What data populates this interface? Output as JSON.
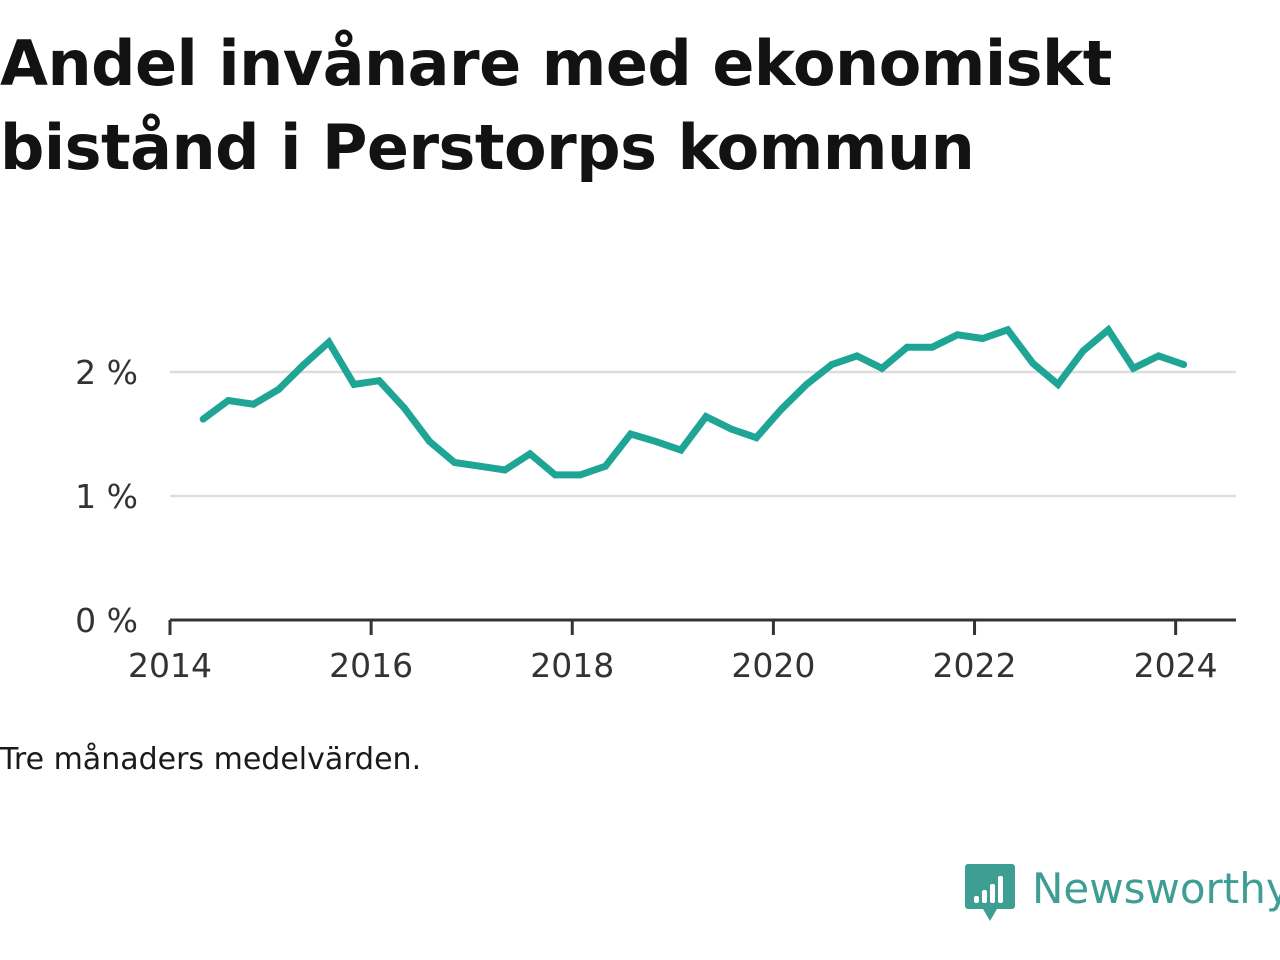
{
  "title": "Andel invånare med ekonomiskt bistånd i Perstorps kommun",
  "note": "Tre månaders medelvärden.",
  "brand": {
    "name": "Newsworthy",
    "icon": "bar-chart-speech-bubble-icon",
    "color": "#3f9e94"
  },
  "colors": {
    "line": "#1ea596",
    "grid": "#dddddd",
    "axis": "#333333"
  },
  "chart_data": {
    "type": "line",
    "title": "Andel invånare med ekonomiskt bistånd i Perstorps kommun",
    "xlabel": "",
    "ylabel": "",
    "xlim": [
      2014,
      2024.6
    ],
    "ylim": [
      0,
      2.5
    ],
    "grid": true,
    "x_ticks": [
      {
        "value": 2014,
        "label": "2014"
      },
      {
        "value": 2016,
        "label": "2016"
      },
      {
        "value": 2018,
        "label": "2018"
      },
      {
        "value": 2020,
        "label": "2020"
      },
      {
        "value": 2022,
        "label": "2022"
      },
      {
        "value": 2024,
        "label": "2024"
      }
    ],
    "y_ticks": [
      {
        "value": 0,
        "label": "0 %"
      },
      {
        "value": 1,
        "label": "1 %"
      },
      {
        "value": 2,
        "label": "2 %"
      }
    ],
    "series": [
      {
        "points": [
          {
            "x": 2014.33,
            "y": 1.62
          },
          {
            "x": 2014.58,
            "y": 1.77
          },
          {
            "x": 2014.83,
            "y": 1.74
          },
          {
            "x": 2015.08,
            "y": 1.86
          },
          {
            "x": 2015.33,
            "y": 2.06
          },
          {
            "x": 2015.58,
            "y": 2.24
          },
          {
            "x": 2015.83,
            "y": 1.9
          },
          {
            "x": 2016.08,
            "y": 1.93
          },
          {
            "x": 2016.33,
            "y": 1.71
          },
          {
            "x": 2016.58,
            "y": 1.44
          },
          {
            "x": 2016.83,
            "y": 1.27
          },
          {
            "x": 2017.08,
            "y": 1.24
          },
          {
            "x": 2017.33,
            "y": 1.21
          },
          {
            "x": 2017.58,
            "y": 1.34
          },
          {
            "x": 2017.83,
            "y": 1.17
          },
          {
            "x": 2018.08,
            "y": 1.17
          },
          {
            "x": 2018.33,
            "y": 1.24
          },
          {
            "x": 2018.58,
            "y": 1.5
          },
          {
            "x": 2018.83,
            "y": 1.44
          },
          {
            "x": 2019.08,
            "y": 1.37
          },
          {
            "x": 2019.33,
            "y": 1.64
          },
          {
            "x": 2019.58,
            "y": 1.54
          },
          {
            "x": 2019.83,
            "y": 1.47
          },
          {
            "x": 2020.08,
            "y": 1.7
          },
          {
            "x": 2020.33,
            "y": 1.9
          },
          {
            "x": 2020.58,
            "y": 2.06
          },
          {
            "x": 2020.83,
            "y": 2.13
          },
          {
            "x": 2021.08,
            "y": 2.03
          },
          {
            "x": 2021.33,
            "y": 2.2
          },
          {
            "x": 2021.58,
            "y": 2.2
          },
          {
            "x": 2021.83,
            "y": 2.3
          },
          {
            "x": 2022.08,
            "y": 2.27
          },
          {
            "x": 2022.33,
            "y": 2.34
          },
          {
            "x": 2022.58,
            "y": 2.07
          },
          {
            "x": 2022.83,
            "y": 1.9
          },
          {
            "x": 2023.08,
            "y": 2.17
          },
          {
            "x": 2023.33,
            "y": 2.34
          },
          {
            "x": 2023.58,
            "y": 2.03
          },
          {
            "x": 2023.83,
            "y": 2.13
          },
          {
            "x": 2024.08,
            "y": 2.06
          }
        ]
      }
    ]
  }
}
